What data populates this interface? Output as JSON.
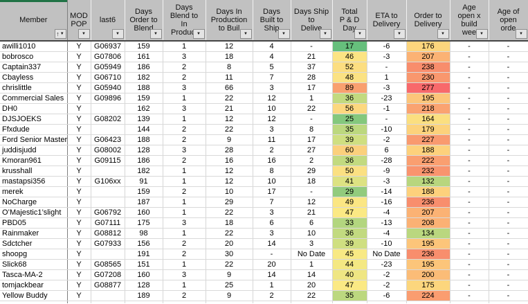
{
  "accent_bar_color": "#217346",
  "icons": {
    "filter_dropdown": "▼",
    "sort_ascending": "↑"
  },
  "table": {
    "columns": [
      {
        "id": "member",
        "label": "Member",
        "sorted": true
      },
      {
        "id": "mod_pop",
        "label": "MOD\nPOP"
      },
      {
        "id": "last6",
        "label": "last6"
      },
      {
        "id": "order_to_blend",
        "label": "Days\nOrder to\nBlend"
      },
      {
        "id": "blend_to_inprod",
        "label": "Days\nBlend to\nIn\nProduct"
      },
      {
        "id": "inprod_to_built",
        "label": "Days In\nProduction\nto Buil"
      },
      {
        "id": "built_to_ship",
        "label": "Days\nBuilt to\nShip"
      },
      {
        "id": "ship_to_deliver",
        "label": "Days Ship\nto\nDelive"
      },
      {
        "id": "total_pd",
        "label": "Total\nP & D\nDay"
      },
      {
        "id": "eta_to_delivery",
        "label": "ETA to\nDelivery"
      },
      {
        "id": "order_to_delivery",
        "label": "Order to\nDelivery"
      },
      {
        "id": "age_open_build",
        "label": "Age\nopen x\nbuild\nwee"
      },
      {
        "id": "age_open_order",
        "label": "Age of\nopen\norde"
      }
    ],
    "rows": [
      {
        "member": "awilli1010",
        "mod_pop": "Y",
        "last6": "G06937",
        "order_to_blend": "159",
        "blend_to_inprod": "1",
        "inprod_to_built": "12",
        "built_to_ship": "4",
        "ship_to_deliver": "-",
        "total_pd": "17",
        "total_pd_color": "#66BF7C",
        "eta_to_delivery": "-6",
        "order_to_delivery": "176",
        "order_to_delivery_color": "#FCD57D",
        "age_open_build": "-",
        "age_open_order": "-"
      },
      {
        "member": "bobrosco",
        "mod_pop": "Y",
        "last6": "G07806",
        "order_to_blend": "161",
        "blend_to_inprod": "3",
        "inprod_to_built": "18",
        "built_to_ship": "4",
        "ship_to_deliver": "21",
        "total_pd": "46",
        "total_pd_color": "#FCE483",
        "eta_to_delivery": "-3",
        "order_to_delivery": "207",
        "order_to_delivery_color": "#FBB274",
        "age_open_build": "-",
        "age_open_order": "-"
      },
      {
        "member": "Captain337",
        "mod_pop": "Y",
        "last6": "G05949",
        "order_to_blend": "186",
        "blend_to_inprod": "2",
        "inprod_to_built": "8",
        "built_to_ship": "5",
        "ship_to_deliver": "37",
        "total_pd": "52",
        "total_pd_color": "#FCDE81",
        "eta_to_delivery": "-",
        "order_to_delivery": "238",
        "order_to_delivery_color": "#F88D6C",
        "age_open_build": "-",
        "age_open_order": "-"
      },
      {
        "member": "Cbayless",
        "mod_pop": "Y",
        "last6": "G06710",
        "order_to_blend": "182",
        "blend_to_inprod": "2",
        "inprod_to_built": "11",
        "built_to_ship": "7",
        "ship_to_deliver": "28",
        "total_pd": "48",
        "total_pd_color": "#FBE283",
        "eta_to_delivery": "1",
        "order_to_delivery": "230",
        "order_to_delivery_color": "#F9976E",
        "age_open_build": "-",
        "age_open_order": "-"
      },
      {
        "member": "chrislittle",
        "mod_pop": "Y",
        "last6": "G05940",
        "order_to_blend": "188",
        "blend_to_inprod": "3",
        "inprod_to_built": "66",
        "built_to_ship": "3",
        "ship_to_deliver": "17",
        "total_pd": "89",
        "total_pd_color": "#F9A06F",
        "eta_to_delivery": "-3",
        "order_to_delivery": "277",
        "order_to_delivery_color": "#F8696B",
        "age_open_build": "-",
        "age_open_order": "-"
      },
      {
        "member": "Commercial Sales",
        "mod_pop": "Y",
        "last6": "G09896",
        "order_to_blend": "159",
        "blend_to_inprod": "1",
        "inprod_to_built": "22",
        "built_to_ship": "12",
        "ship_to_deliver": "1",
        "total_pd": "36",
        "total_pd_color": "#C2DA80",
        "eta_to_delivery": "-23",
        "order_to_delivery": "195",
        "order_to_delivery_color": "#FCC57A",
        "age_open_build": "-",
        "age_open_order": "-"
      },
      {
        "member": "DH0",
        "mod_pop": "Y",
        "last6": "",
        "order_to_blend": "162",
        "blend_to_inprod": "3",
        "inprod_to_built": "21",
        "built_to_ship": "10",
        "ship_to_deliver": "22",
        "total_pd": "56",
        "total_pd_color": "#FCD87F",
        "eta_to_delivery": "-1",
        "order_to_delivery": "218",
        "order_to_delivery_color": "#FAA371",
        "age_open_build": "-",
        "age_open_order": "-"
      },
      {
        "member": "DJSJOEKS",
        "mod_pop": "Y",
        "last6": "G08202",
        "order_to_blend": "139",
        "blend_to_inprod": "1",
        "inprod_to_built": "12",
        "built_to_ship": "12",
        "ship_to_deliver": "-",
        "total_pd": "25",
        "total_pd_color": "#84C87D",
        "eta_to_delivery": "-",
        "order_to_delivery": "164",
        "order_to_delivery_color": "#FBDF80",
        "age_open_build": "-",
        "age_open_order": "-"
      },
      {
        "member": "Ffxdude",
        "mod_pop": "Y",
        "last6": "",
        "order_to_blend": "144",
        "blend_to_inprod": "2",
        "inprod_to_built": "22",
        "built_to_ship": "3",
        "ship_to_deliver": "8",
        "total_pd": "35",
        "total_pd_color": "#BCD87F",
        "eta_to_delivery": "-10",
        "order_to_delivery": "179",
        "order_to_delivery_color": "#FCD27C",
        "age_open_build": "-",
        "age_open_order": "-"
      },
      {
        "member": "Ford Senior Master",
        "mod_pop": "Y",
        "last6": "G06423",
        "order_to_blend": "188",
        "blend_to_inprod": "2",
        "inprod_to_built": "9",
        "built_to_ship": "11",
        "ship_to_deliver": "17",
        "total_pd": "39",
        "total_pd_color": "#CFDF81",
        "eta_to_delivery": "-2",
        "order_to_delivery": "227",
        "order_to_delivery_color": "#F99A6F",
        "age_open_build": "-",
        "age_open_order": "-"
      },
      {
        "member": "juddisjudd",
        "mod_pop": "Y",
        "last6": "G08002",
        "order_to_blend": "128",
        "blend_to_inprod": "3",
        "inprod_to_built": "28",
        "built_to_ship": "2",
        "ship_to_deliver": "27",
        "total_pd": "60",
        "total_pd_color": "#FBD07C",
        "eta_to_delivery": "6",
        "order_to_delivery": "188",
        "order_to_delivery_color": "#FDD17C",
        "age_open_build": "-",
        "age_open_order": "-"
      },
      {
        "member": "Kmoran961",
        "mod_pop": "Y",
        "last6": "G09115",
        "order_to_blend": "186",
        "blend_to_inprod": "2",
        "inprod_to_built": "16",
        "built_to_ship": "16",
        "ship_to_deliver": "2",
        "total_pd": "36",
        "total_pd_color": "#C2DA80",
        "eta_to_delivery": "-28",
        "order_to_delivery": "222",
        "order_to_delivery_color": "#FA9F70",
        "age_open_build": "-",
        "age_open_order": "-"
      },
      {
        "member": "krusshall",
        "mod_pop": "Y",
        "last6": "",
        "order_to_blend": "182",
        "blend_to_inprod": "1",
        "inprod_to_built": "12",
        "built_to_ship": "8",
        "ship_to_deliver": "29",
        "total_pd": "50",
        "total_pd_color": "#FBE082",
        "eta_to_delivery": "-9",
        "order_to_delivery": "232",
        "order_to_delivery_color": "#F9946E",
        "age_open_build": "-",
        "age_open_order": "-"
      },
      {
        "member": "mastapsi356",
        "mod_pop": "Y",
        "last6": "G106xx",
        "order_to_blend": "91",
        "blend_to_inprod": "1",
        "inprod_to_built": "12",
        "built_to_ship": "10",
        "ship_to_deliver": "18",
        "total_pd": "41",
        "total_pd_color": "#DDE282",
        "eta_to_delivery": "-3",
        "order_to_delivery": "132",
        "order_to_delivery_color": "#B8D67E",
        "age_open_build": "-",
        "age_open_order": "-"
      },
      {
        "member": "merek",
        "mod_pop": "Y",
        "last6": "",
        "order_to_blend": "159",
        "blend_to_inprod": "2",
        "inprod_to_built": "10",
        "built_to_ship": "17",
        "ship_to_deliver": "-",
        "total_pd": "29",
        "total_pd_color": "#92CB7D",
        "eta_to_delivery": "-14",
        "order_to_delivery": "188",
        "order_to_delivery_color": "#FDD17C",
        "age_open_build": "-",
        "age_open_order": "-"
      },
      {
        "member": "NoCharge",
        "mod_pop": "Y",
        "last6": "",
        "order_to_blend": "187",
        "blend_to_inprod": "1",
        "inprod_to_built": "29",
        "built_to_ship": "7",
        "ship_to_deliver": "12",
        "total_pd": "49",
        "total_pd_color": "#FBE683",
        "eta_to_delivery": "-16",
        "order_to_delivery": "236",
        "order_to_delivery_color": "#F88E6D",
        "age_open_build": "-",
        "age_open_order": "-"
      },
      {
        "member": "O’Majestic1’slight",
        "mod_pop": "Y",
        "last6": "G06792",
        "order_to_blend": "160",
        "blend_to_inprod": "1",
        "inprod_to_built": "22",
        "built_to_ship": "3",
        "ship_to_deliver": "21",
        "total_pd": "47",
        "total_pd_color": "#FBE984",
        "eta_to_delivery": "-4",
        "order_to_delivery": "207",
        "order_to_delivery_color": "#FBB274",
        "age_open_build": "-",
        "age_open_order": "-"
      },
      {
        "member": "PBD05",
        "mod_pop": "Y",
        "last6": "G07111",
        "order_to_blend": "175",
        "blend_to_inprod": "3",
        "inprod_to_built": "18",
        "built_to_ship": "6",
        "ship_to_deliver": "6",
        "total_pd": "33",
        "total_pd_color": "#B3D67F",
        "eta_to_delivery": "-13",
        "order_to_delivery": "208",
        "order_to_delivery_color": "#FBB174",
        "age_open_build": "-",
        "age_open_order": "-"
      },
      {
        "member": "Rainmaker",
        "mod_pop": "Y",
        "last6": "G08812",
        "order_to_blend": "98",
        "blend_to_inprod": "1",
        "inprod_to_built": "22",
        "built_to_ship": "3",
        "ship_to_deliver": "10",
        "total_pd": "36",
        "total_pd_color": "#C2DA80",
        "eta_to_delivery": "-4",
        "order_to_delivery": "134",
        "order_to_delivery_color": "#BAD77F",
        "age_open_build": "-",
        "age_open_order": "-"
      },
      {
        "member": "Sdctcher",
        "mod_pop": "Y",
        "last6": "G07933",
        "order_to_blend": "156",
        "blend_to_inprod": "2",
        "inprod_to_built": "20",
        "built_to_ship": "14",
        "ship_to_deliver": "3",
        "total_pd": "39",
        "total_pd_color": "#CFDF81",
        "eta_to_delivery": "-10",
        "order_to_delivery": "195",
        "order_to_delivery_color": "#FCC57A",
        "age_open_build": "-",
        "age_open_order": "-"
      },
      {
        "member": "shoopg",
        "mod_pop": "Y",
        "last6": "",
        "order_to_blend": "191",
        "blend_to_inprod": "2",
        "inprod_to_built": "30",
        "built_to_ship": "-",
        "ship_to_deliver": "No Date",
        "total_pd": "45",
        "total_pd_color": "#F8E984",
        "eta_to_delivery": "No Date",
        "order_to_delivery": "236",
        "order_to_delivery_color": "#F88E6D",
        "age_open_build": "-",
        "age_open_order": "-"
      },
      {
        "member": "Slick68",
        "mod_pop": "Y",
        "last6": "G08565",
        "order_to_blend": "151",
        "blend_to_inprod": "1",
        "inprod_to_built": "22",
        "built_to_ship": "20",
        "ship_to_deliver": "1",
        "total_pd": "44",
        "total_pd_color": "#F4E883",
        "eta_to_delivery": "-23",
        "order_to_delivery": "195",
        "order_to_delivery_color": "#FCC57A",
        "age_open_build": "-",
        "age_open_order": "-"
      },
      {
        "member": "Tasca-MA-2",
        "mod_pop": "Y",
        "last6": "G07208",
        "order_to_blend": "160",
        "blend_to_inprod": "3",
        "inprod_to_built": "9",
        "built_to_ship": "14",
        "ship_to_deliver": "14",
        "total_pd": "40",
        "total_pd_color": "#EFE683",
        "eta_to_delivery": "-2",
        "order_to_delivery": "200",
        "order_to_delivery_color": "#FBBC77",
        "age_open_build": "-",
        "age_open_order": "-"
      },
      {
        "member": "tomjackbear",
        "mod_pop": "Y",
        "last6": "G08877",
        "order_to_blend": "128",
        "blend_to_inprod": "1",
        "inprod_to_built": "25",
        "built_to_ship": "1",
        "ship_to_deliver": "20",
        "total_pd": "47",
        "total_pd_color": "#FBE984",
        "eta_to_delivery": "-2",
        "order_to_delivery": "175",
        "order_to_delivery_color": "#FCD67D",
        "age_open_build": "-",
        "age_open_order": "-"
      },
      {
        "member": "Yellow Buddy",
        "mod_pop": "Y",
        "last6": "",
        "order_to_blend": "189",
        "blend_to_inprod": "2",
        "inprod_to_built": "9",
        "built_to_ship": "2",
        "ship_to_deliver": "22",
        "total_pd": "35",
        "total_pd_color": "#BCD87F",
        "eta_to_delivery": "-6",
        "order_to_delivery": "224",
        "order_to_delivery_color": "#FA9D70",
        "age_open_build": "-",
        "age_open_order": "-"
      }
    ]
  }
}
